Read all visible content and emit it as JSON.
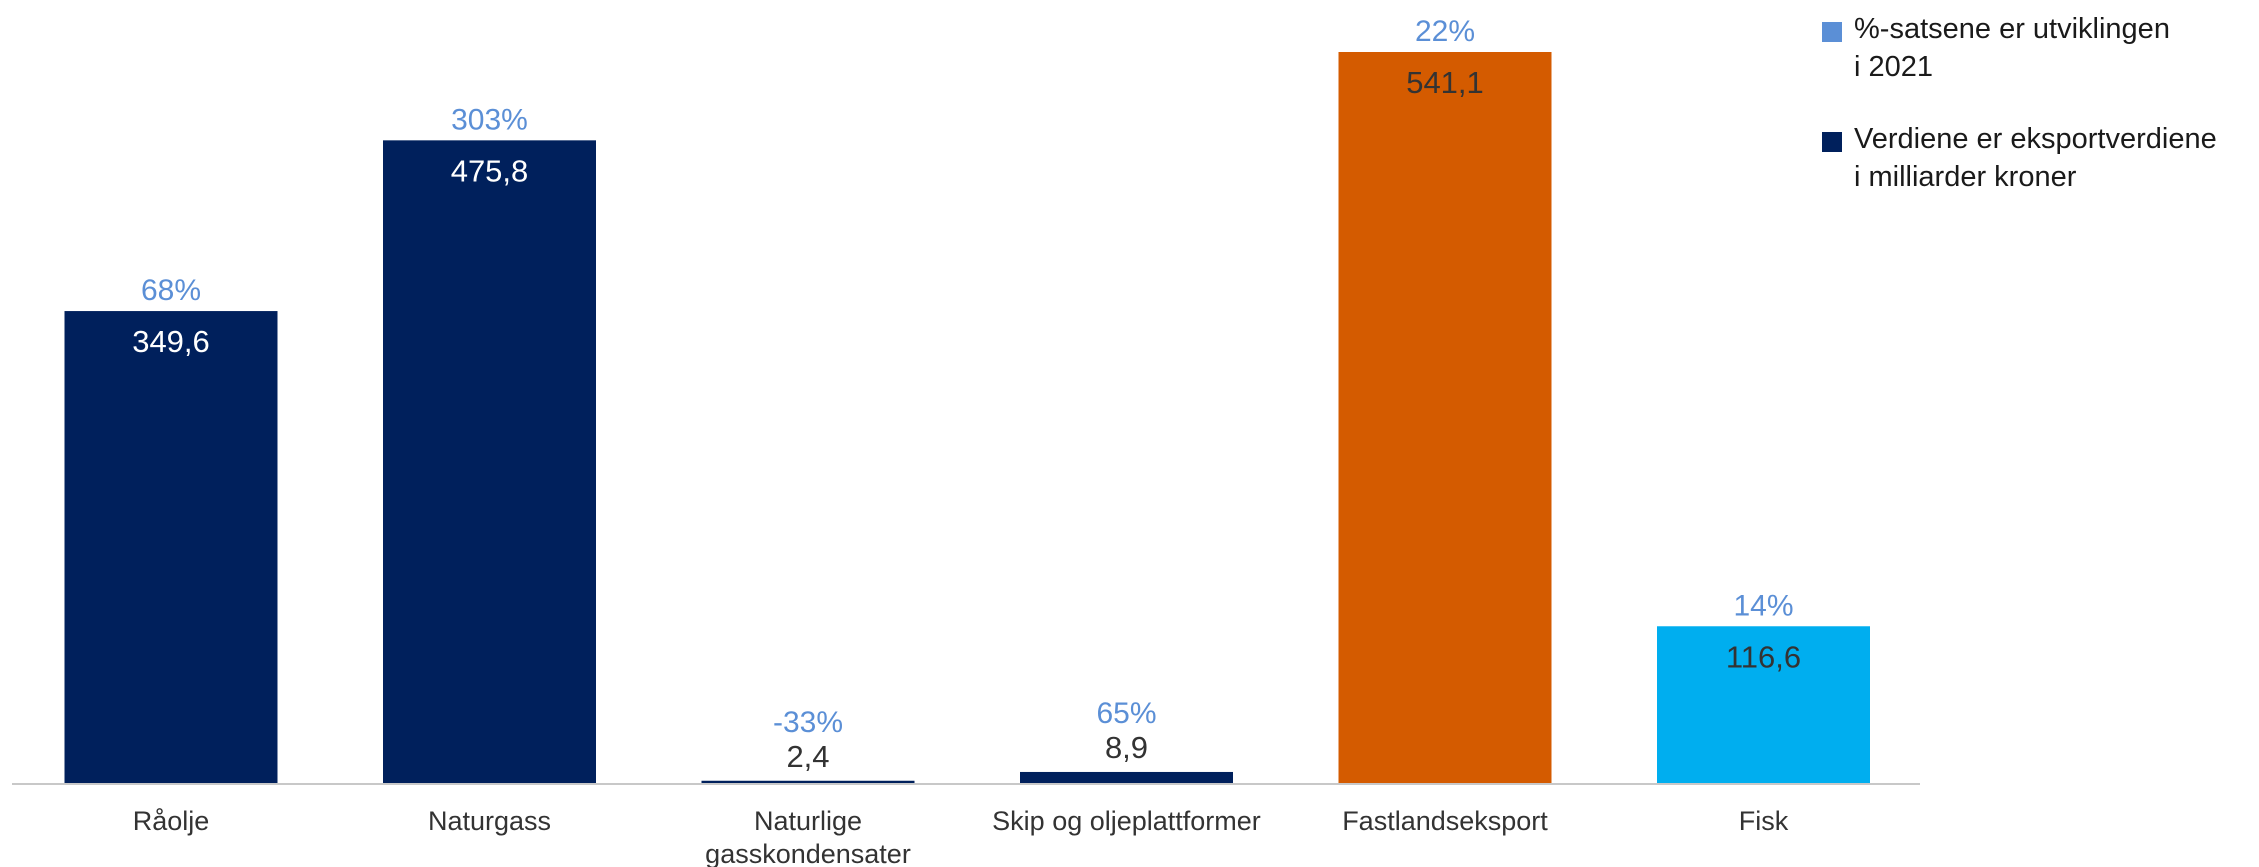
{
  "chart_data": {
    "type": "bar",
    "categories": [
      "Råolje",
      "Naturgass",
      "Naturlige gasskondensater",
      "Skip og oljeplattformer",
      "Fastlandseksport",
      "Fisk"
    ],
    "category_label_lines": [
      [
        "Råolje"
      ],
      [
        "Naturgass"
      ],
      [
        "Naturlige",
        "gasskondensater"
      ],
      [
        "Skip og oljeplattformer"
      ],
      [
        "Fastlandseksport"
      ],
      [
        "Fisk"
      ]
    ],
    "values": [
      349.6,
      475.8,
      2.4,
      8.9,
      541.1,
      116.6
    ],
    "value_labels": [
      "349,6",
      "475,8",
      "2,4",
      "8,9",
      "541,1",
      "116,6"
    ],
    "change_labels": [
      "68%",
      "303%",
      "-33%",
      "65%",
      "22%",
      "14%"
    ],
    "bar_colors": [
      "#00205c",
      "#00205c",
      "#00205c",
      "#00205c",
      "#d45b00",
      "#00aeef"
    ],
    "value_label_colors": [
      "#ffffff",
      "#ffffff",
      "#333333",
      "#333333",
      "#333333",
      "#333333"
    ],
    "change_label_color": "#5b8fd6",
    "ylim": [
      0,
      541.1
    ],
    "grid": false,
    "title": "",
    "xlabel": "",
    "ylabel": ""
  },
  "legend": {
    "placement": "top-right",
    "items": [
      {
        "label": "%-satsene er utviklingen\ni 2021",
        "color": "#5b8fd6"
      },
      {
        "label": "Verdiene er eksportverdiene\ni milliarder kroner",
        "color": "#00205c"
      }
    ]
  }
}
